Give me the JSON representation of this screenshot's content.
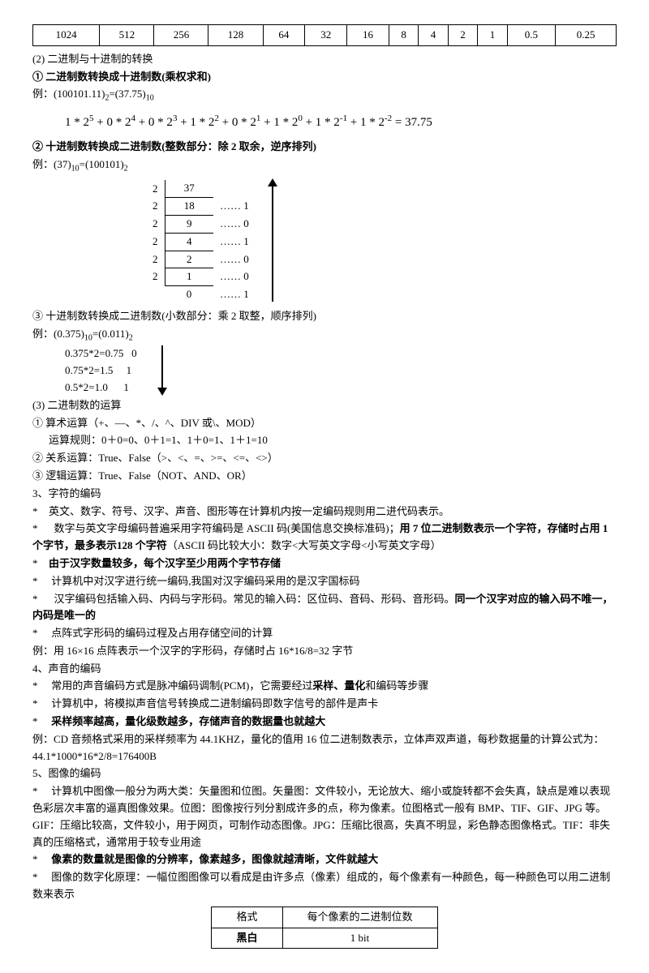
{
  "numTable": [
    "1024",
    "512",
    "256",
    "128",
    "64",
    "32",
    "16",
    "8",
    "4",
    "2",
    "1",
    "0.5",
    "0.25"
  ],
  "s1": "(2) 二进制与十进制的转换",
  "s2": "① 二进制数转换成十进制数(乘权求和)",
  "s3": "例：(100101.11)",
  "s3a": "2",
  "s3b": "=(37.75)",
  "s3c": "10",
  "expA": "1 * 2",
  "e5": "5",
  "p1": " + 0 * 2",
  "e4": "4",
  "p2": " + 0 * 2",
  "e3": "3",
  "p3": " + 1 * 2",
  "e2": "2",
  "p4": " + 0 * 2",
  "e1": "1",
  "p5": " + 1 * 2",
  "e0": "0",
  "p6": " + 1 * 2",
  "en1": "-1",
  "p7": " + 1 * 2",
  "en2": "-2",
  "eq": " = 37.75",
  "s4": "② 十进制数转换成二进制数(整数部分：除 2 取余，逆序排列)",
  "s5": "例：(37)",
  "s5a": "10",
  "s5b": "=(100101)",
  "s5c": "2",
  "div": [
    {
      "l": "2",
      "m": "37",
      "r": ""
    },
    {
      "l": "2",
      "m": "18",
      "r": "…… 1"
    },
    {
      "l": "2",
      "m": "9",
      "r": "…… 0"
    },
    {
      "l": "2",
      "m": "4",
      "r": "…… 1"
    },
    {
      "l": "2",
      "m": "2",
      "r": "…… 0"
    },
    {
      "l": "2",
      "m": "1",
      "r": "…… 0"
    },
    {
      "l": "",
      "m": "0",
      "r": "…… 1"
    }
  ],
  "s6": "③ 十进制数转换成二进制数(小数部分：乘 2 取整，顺序排列)",
  "s7": "例：(0.375)",
  "s7a": "10",
  "s7b": "=(0.011)",
  "s7c": "2",
  "frac": [
    "0.375*2=0.75   0",
    "0.75*2=1.5     1",
    "0.5*2=1.0      1"
  ],
  "s8": "(3) 二进制数的运算",
  "s9": "① 算术运算（+、—、*、/、^、DIV 或\\、MOD）",
  "s10": "运算规则：0＋0=0、0＋1=1、1＋0=1、1＋1=10",
  "s11": "② 关系运算：True、False（>、<、=、>=、<=、<>）",
  "s12": "③ 逻辑运算：True、False（NOT、AND、OR）",
  "s13": "3、字符的编码",
  "s14": "英文、数字、符号、汉字、声音、图形等在计算机内按一定编码规则用二进代码表示。",
  "s15a": "数字与英文字母编码普遍采用字符编码是 ASCII 码(美国信息交换标准码)；",
  "s15b": "用 7 位二进制数表示一个字符，存储时占用 1 个字节，最多表示128 个字符",
  "s15c": "（ASCII 码比较大小：数字<大写英文字母<小写英文字母）",
  "s16": "由于汉字数量较多，每个汉字至少用两个字节存储",
  "s17": "计算机中对汉字进行统一编码,我国对汉字编码采用的是汉字国标码",
  "s18a": "汉字编码包括输入码、内码与字形码。常见的输入码：区位码、音码、形码、音形码。",
  "s18b": "同一个汉字对应的输入码不唯一，内码是唯一的",
  "s19": "点阵式字形码的编码过程及占用存储空间的计算",
  "s20": "例：用 16×16 点阵表示一个汉字的字形码，存储时占 16*16/8=32 字节",
  "s21": "4、声音的编码",
  "s22a": "常用的声音编码方式是脉冲编码调制(PCM)，它需要经过",
  "s22b": "采样、量化",
  "s22c": "和编码等步骤",
  "s23": "计算机中，将模拟声音信号转换成二进制编码即数字信号的部件是声卡",
  "s24": "采样频率越高，量化级数越多，存储声音的数据量也就越大",
  "s25": "例：CD 音频格式采用的采样频率为 44.1KHZ，量化的值用 16 位二进制数表示，立体声双声道，每秒数据量的计算公式为：44.1*1000*16*2/8=176400B",
  "s26": "5、图像的编码",
  "s27": "计算机中图像一般分为两大类：矢量图和位图。矢量图：文件较小，无论放大、缩小或旋转都不会失真，缺点是难以表现色彩层次丰富的逼真图像效果。位图：图像按行列分割成许多的点，称为像素。位图格式一般有 BMP、TIF、GIF、JPG 等。GIF：压缩比较高，文件较小，用于网页，可制作动态图像。JPG：压缩比很高，失真不明显，彩色静态图像格式。TIF：非失真的压缩格式，通常用于较专业用途",
  "s28": "像素的数量就是图像的分辨率，像素越多，图像就越清晰，文件就越大",
  "s29": "图像的数字化原理：一幅位图图像可以看成是由许多点（像素）组成的，每个像素有一种颜色，每一种颜色可以用二进制数来表示",
  "fmtH1": "格式",
  "fmtH2": "每个像素的二进制位数",
  "fmtR1a": "黑白",
  "fmtR1b": "1 bit",
  "star": "*"
}
